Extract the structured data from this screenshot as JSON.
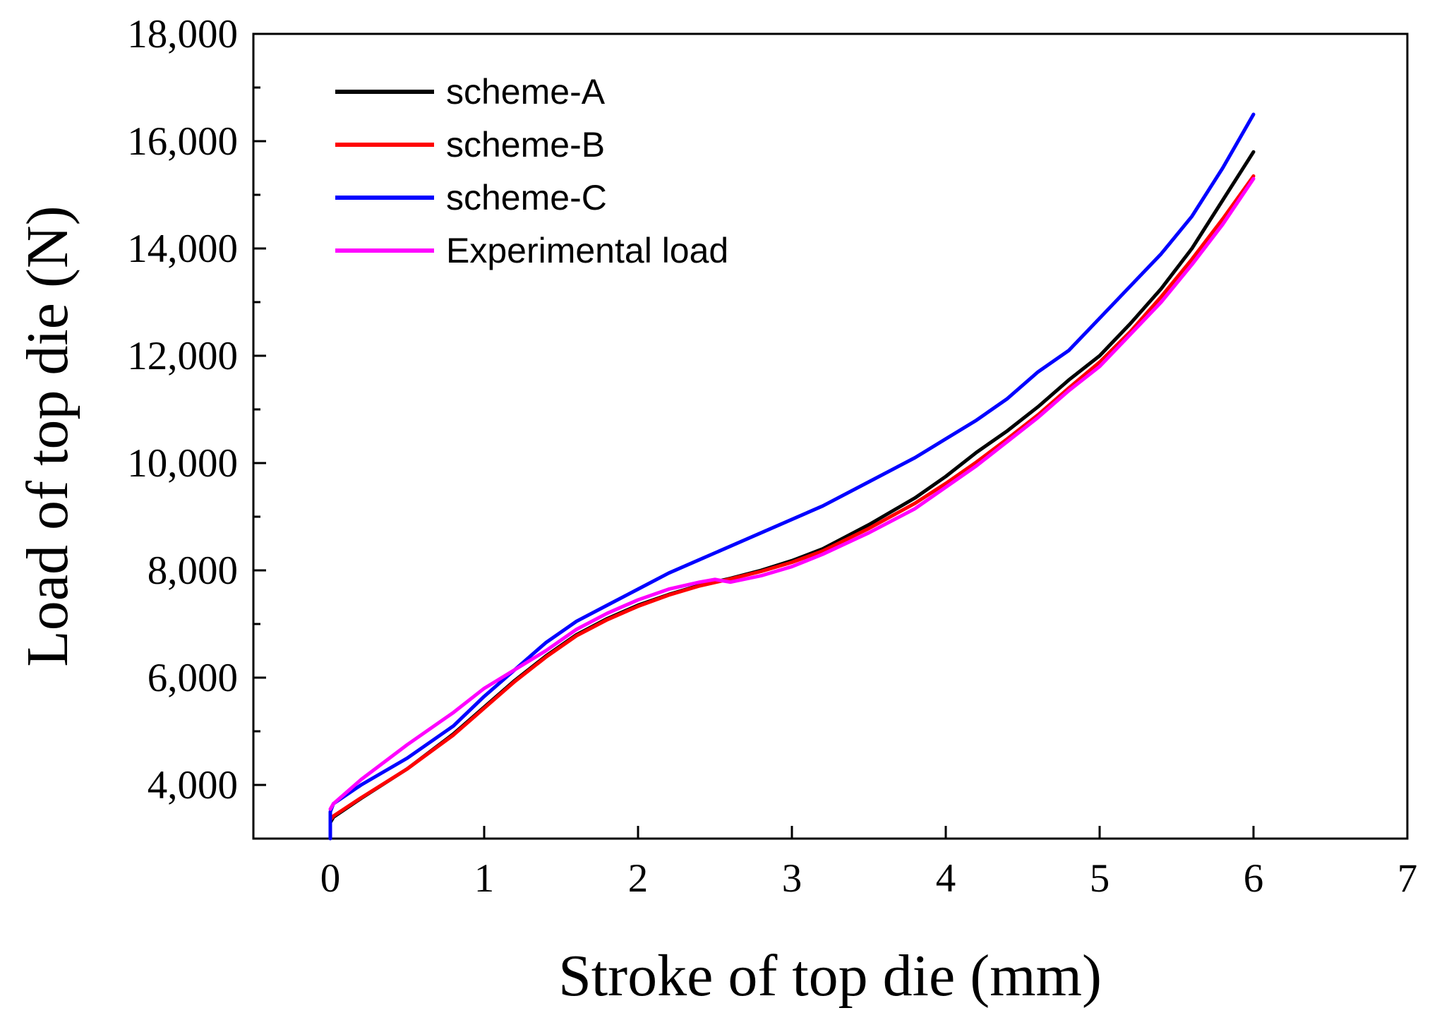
{
  "chart_data": {
    "type": "line",
    "title": "",
    "xlabel": "Stroke of top die (mm)",
    "ylabel": "Load of top die (N)",
    "xlim": [
      -0.5,
      7
    ],
    "ylim": [
      3000,
      18000
    ],
    "x_ticks": [
      0,
      1,
      2,
      3,
      4,
      5,
      6,
      7
    ],
    "x_tick_labels": [
      "0",
      "1",
      "2",
      "3",
      "4",
      "5",
      "6",
      "7"
    ],
    "y_ticks": [
      4000,
      6000,
      8000,
      10000,
      12000,
      14000,
      16000,
      18000
    ],
    "y_tick_labels": [
      "4,000",
      "6,000",
      "8,000",
      "10,000",
      "12,000",
      "14,000",
      "16,000",
      "18,000"
    ],
    "grid": false,
    "legend_position": "top-left",
    "series": [
      {
        "name": "scheme-A",
        "color": "#000000",
        "x": [
          0,
          0.02,
          0.2,
          0.5,
          0.8,
          1.0,
          1.2,
          1.4,
          1.6,
          1.8,
          2.0,
          2.2,
          2.4,
          2.6,
          2.8,
          3.0,
          3.2,
          3.5,
          3.8,
          4.0,
          4.2,
          4.4,
          4.6,
          4.8,
          5.0,
          5.2,
          5.4,
          5.6,
          5.8,
          6.0
        ],
        "y": [
          3300,
          3400,
          3750,
          4300,
          4950,
          5450,
          5950,
          6400,
          6800,
          7100,
          7350,
          7550,
          7720,
          7850,
          8000,
          8180,
          8400,
          8850,
          9350,
          9750,
          10200,
          10600,
          11050,
          11550,
          12000,
          12600,
          13250,
          14000,
          14900,
          15800
        ]
      },
      {
        "name": "scheme-B",
        "color": "#ff0000",
        "x": [
          0,
          0.02,
          0.2,
          0.5,
          0.8,
          1.0,
          1.2,
          1.4,
          1.6,
          1.8,
          2.0,
          2.2,
          2.4,
          2.6,
          2.8,
          3.0,
          3.2,
          3.5,
          3.8,
          4.0,
          4.2,
          4.4,
          4.6,
          4.8,
          5.0,
          5.2,
          5.4,
          5.6,
          5.8,
          6.0
        ],
        "y": [
          3350,
          3420,
          3760,
          4300,
          4930,
          5430,
          5930,
          6380,
          6780,
          7080,
          7330,
          7540,
          7710,
          7840,
          7980,
          8150,
          8360,
          8780,
          9250,
          9620,
          10020,
          10450,
          10900,
          11400,
          11880,
          12450,
          13100,
          13800,
          14550,
          15350
        ]
      },
      {
        "name": "scheme-C",
        "color": "#0000ff",
        "x": [
          0,
          0.0,
          0.02,
          0.2,
          0.5,
          0.8,
          1.0,
          1.2,
          1.4,
          1.6,
          1.8,
          2.0,
          2.2,
          2.4,
          2.6,
          2.8,
          3.0,
          3.2,
          3.5,
          3.8,
          4.0,
          4.2,
          4.4,
          4.6,
          4.8,
          5.0,
          5.2,
          5.4,
          5.6,
          5.8,
          6.0
        ],
        "y": [
          3000,
          3500,
          3650,
          4000,
          4500,
          5100,
          5650,
          6150,
          6650,
          7050,
          7350,
          7650,
          7950,
          8200,
          8450,
          8700,
          8950,
          9200,
          9650,
          10100,
          10450,
          10800,
          11200,
          11700,
          12100,
          12700,
          13300,
          13900,
          14600,
          15500,
          16500
        ]
      },
      {
        "name": "Experimental load",
        "color": "#ff00ff",
        "x": [
          0,
          0.02,
          0.2,
          0.5,
          0.8,
          1.0,
          1.2,
          1.4,
          1.6,
          1.8,
          2.0,
          2.2,
          2.4,
          2.5,
          2.6,
          2.8,
          3.0,
          3.2,
          3.5,
          3.8,
          4.0,
          4.2,
          4.4,
          4.6,
          4.8,
          5.0,
          5.2,
          5.4,
          5.6,
          5.8,
          6.0
        ],
        "y": [
          3550,
          3650,
          4100,
          4750,
          5350,
          5800,
          6150,
          6500,
          6900,
          7200,
          7450,
          7650,
          7780,
          7830,
          7780,
          7900,
          8070,
          8300,
          8700,
          9150,
          9550,
          9950,
          10400,
          10850,
          11350,
          11800,
          12400,
          13000,
          13700,
          14450,
          15300
        ]
      }
    ]
  }
}
